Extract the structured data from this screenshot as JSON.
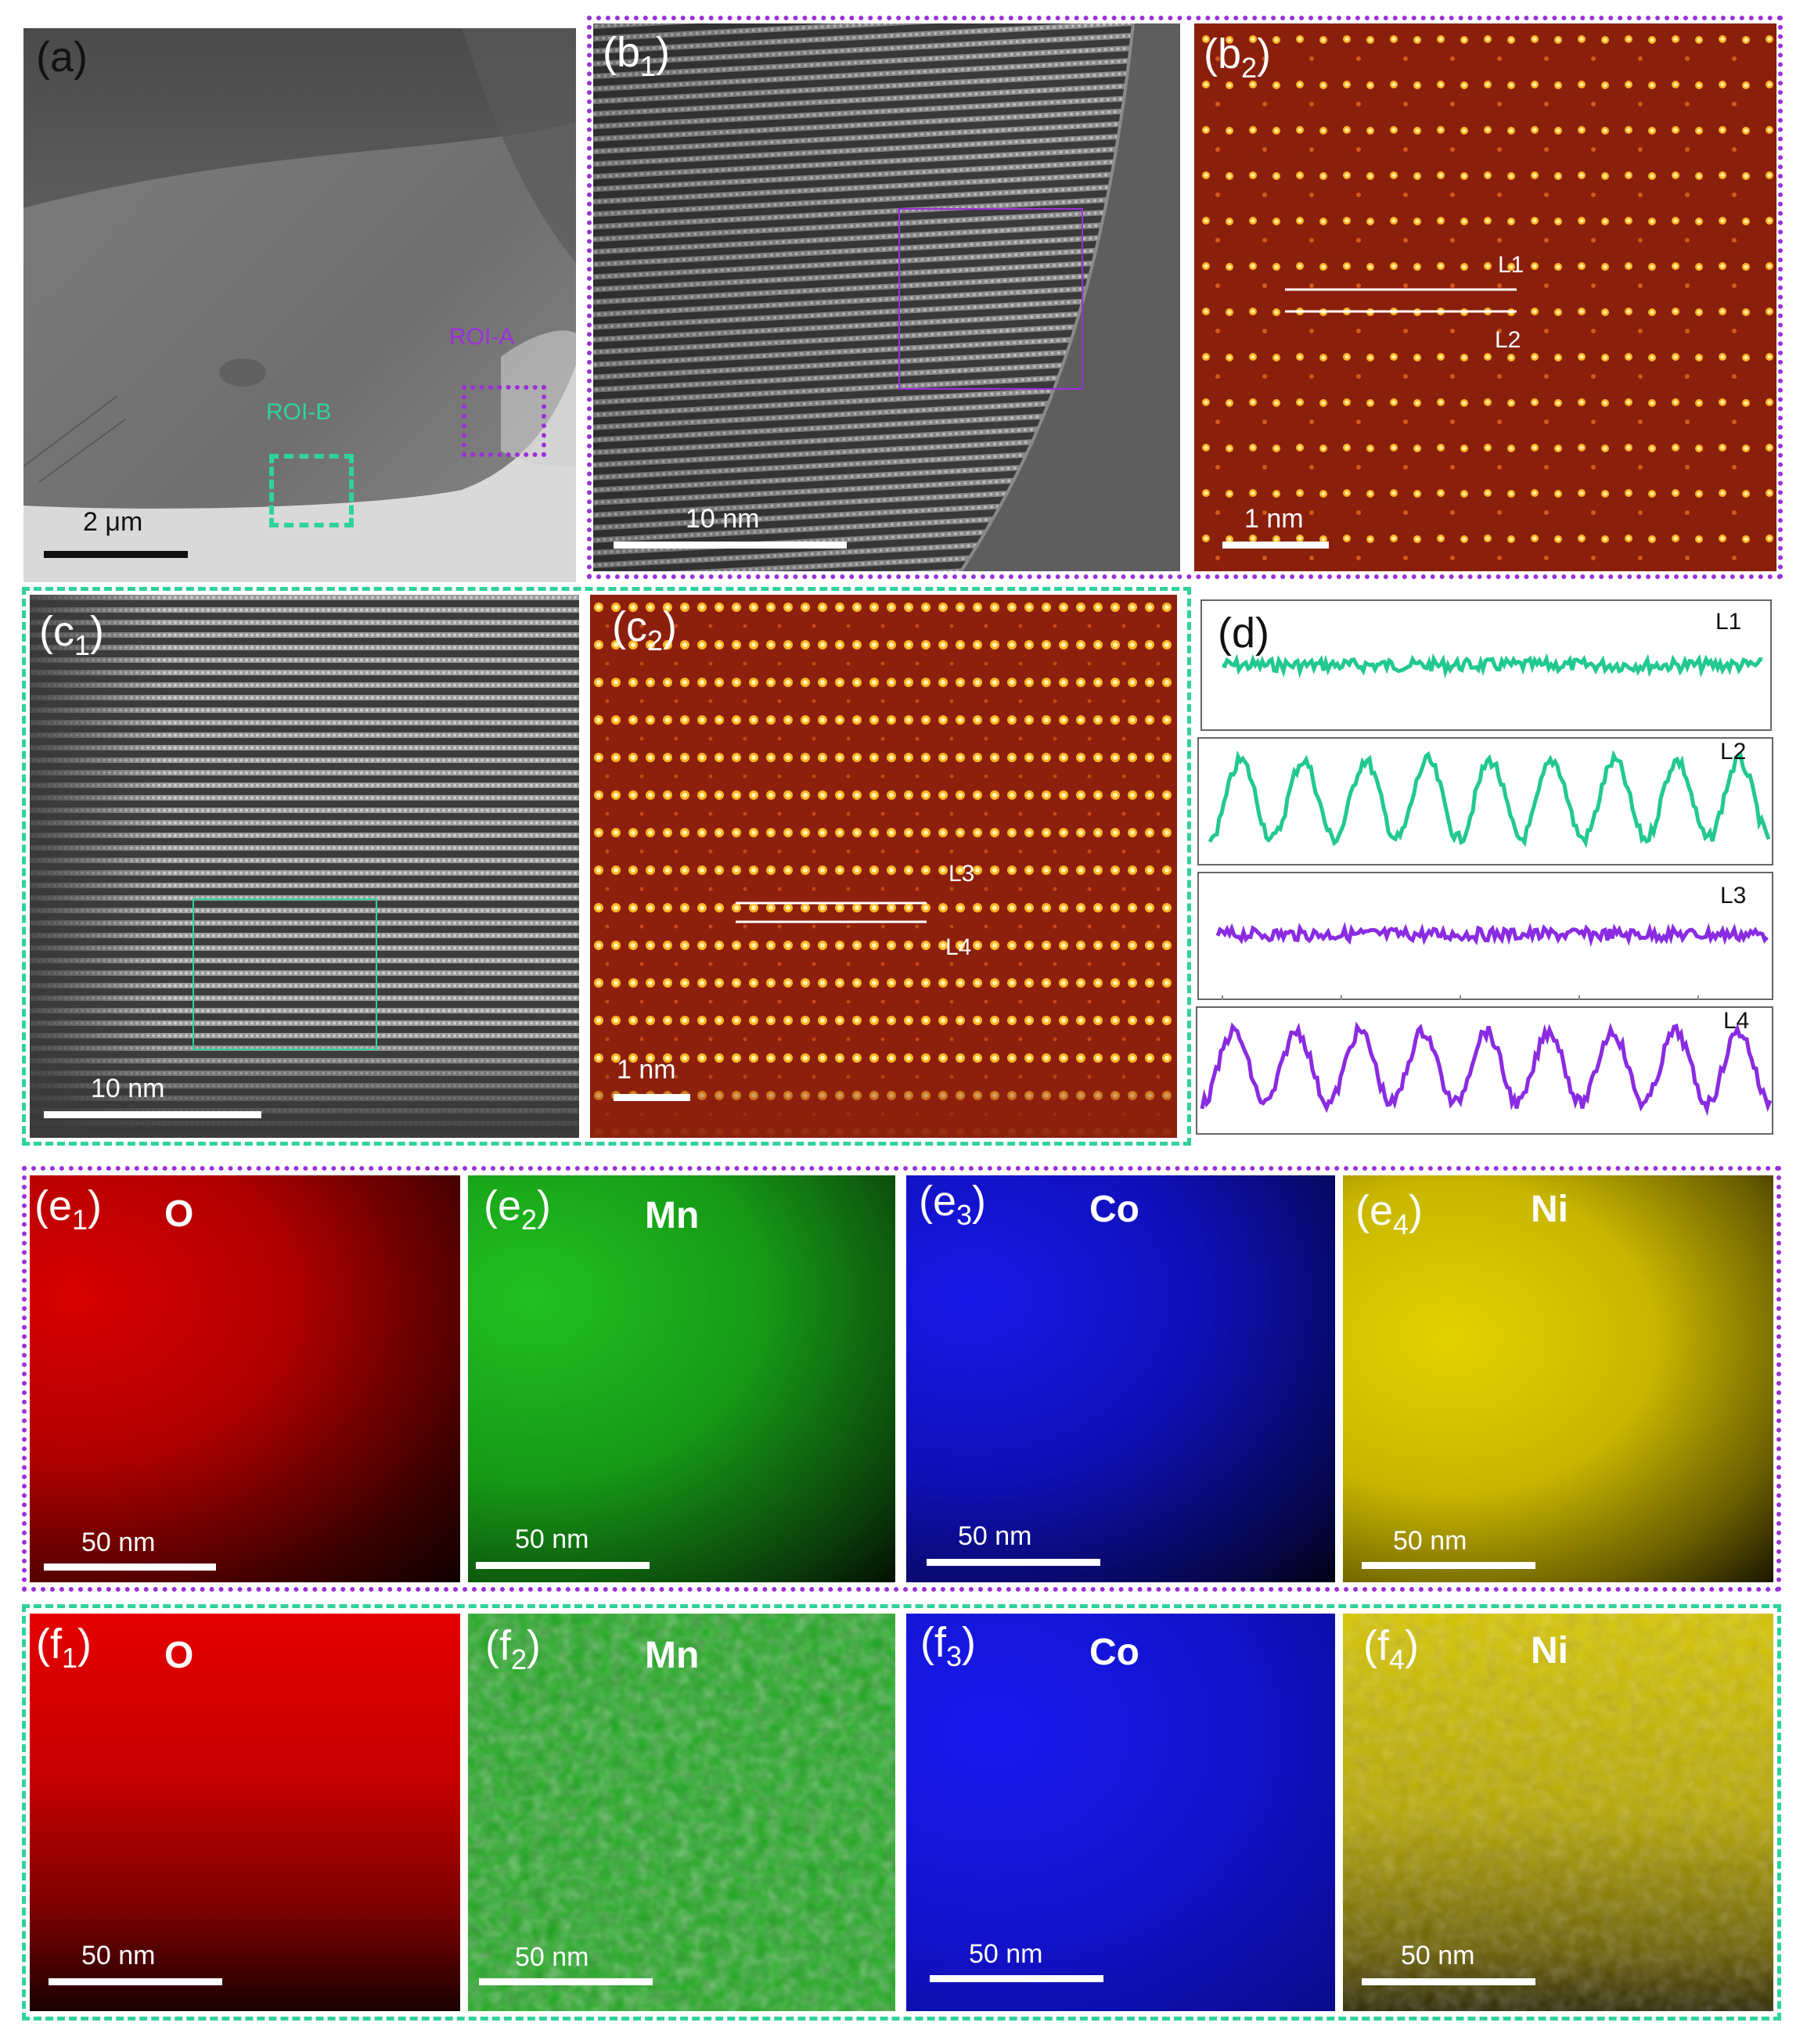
{
  "panels": {
    "a": {
      "label": "(a)",
      "roi_a": "ROI-A",
      "roi_b": "ROI-B",
      "scale": "2 μm"
    },
    "b1": {
      "label_main": "(b",
      "label_sub": "1",
      "label_close": ")",
      "scale": "10 nm"
    },
    "b2": {
      "label_main": "(b",
      "label_sub": "2",
      "label_close": ")",
      "scale": "1 nm",
      "line1": "L1",
      "line2": "L2"
    },
    "c1": {
      "label_main": "(c",
      "label_sub": "1",
      "label_close": ")",
      "scale": "10 nm"
    },
    "c2": {
      "label_main": "(c",
      "label_sub": "2",
      "label_close": ")",
      "scale": "1 nm",
      "line3": "L3",
      "line4": "L4"
    },
    "d": {
      "label": "(d)",
      "profiles": [
        "L1",
        "L2",
        "L3",
        "L4"
      ]
    },
    "e": [
      {
        "label_main": "(e",
        "label_sub": "1",
        "label_close": ")",
        "element": "O",
        "scale": "50 nm"
      },
      {
        "label_main": "(e",
        "label_sub": "2",
        "label_close": ")",
        "element": "Mn",
        "scale": "50 nm"
      },
      {
        "label_main": "(e",
        "label_sub": "3",
        "label_close": ")",
        "element": "Co",
        "scale": "50 nm"
      },
      {
        "label_main": "(e",
        "label_sub": "4",
        "label_close": ")",
        "element": "Ni",
        "scale": "50 nm"
      }
    ],
    "f": [
      {
        "label_main": "(f",
        "label_sub": "1",
        "label_close": ")",
        "element": "O",
        "scale": "50 nm"
      },
      {
        "label_main": "(f",
        "label_sub": "2",
        "label_close": ")",
        "element": "Mn",
        "scale": "50 nm"
      },
      {
        "label_main": "(f",
        "label_sub": "3",
        "label_close": ")",
        "element": "Co",
        "scale": "50 nm"
      },
      {
        "label_main": "(f",
        "label_sub": "4",
        "label_close": ")",
        "element": "Ni",
        "scale": "50 nm"
      }
    ]
  },
  "colors": {
    "roi_a": "#9b30d9",
    "roi_b": "#2fd39a",
    "profile_green": "#22c98e",
    "profile_purple": "#8a2be2",
    "oxygen": "#e00000",
    "manganese": "#1fb81f",
    "cobalt": "#1010e0",
    "nickel": "#d8c800"
  }
}
